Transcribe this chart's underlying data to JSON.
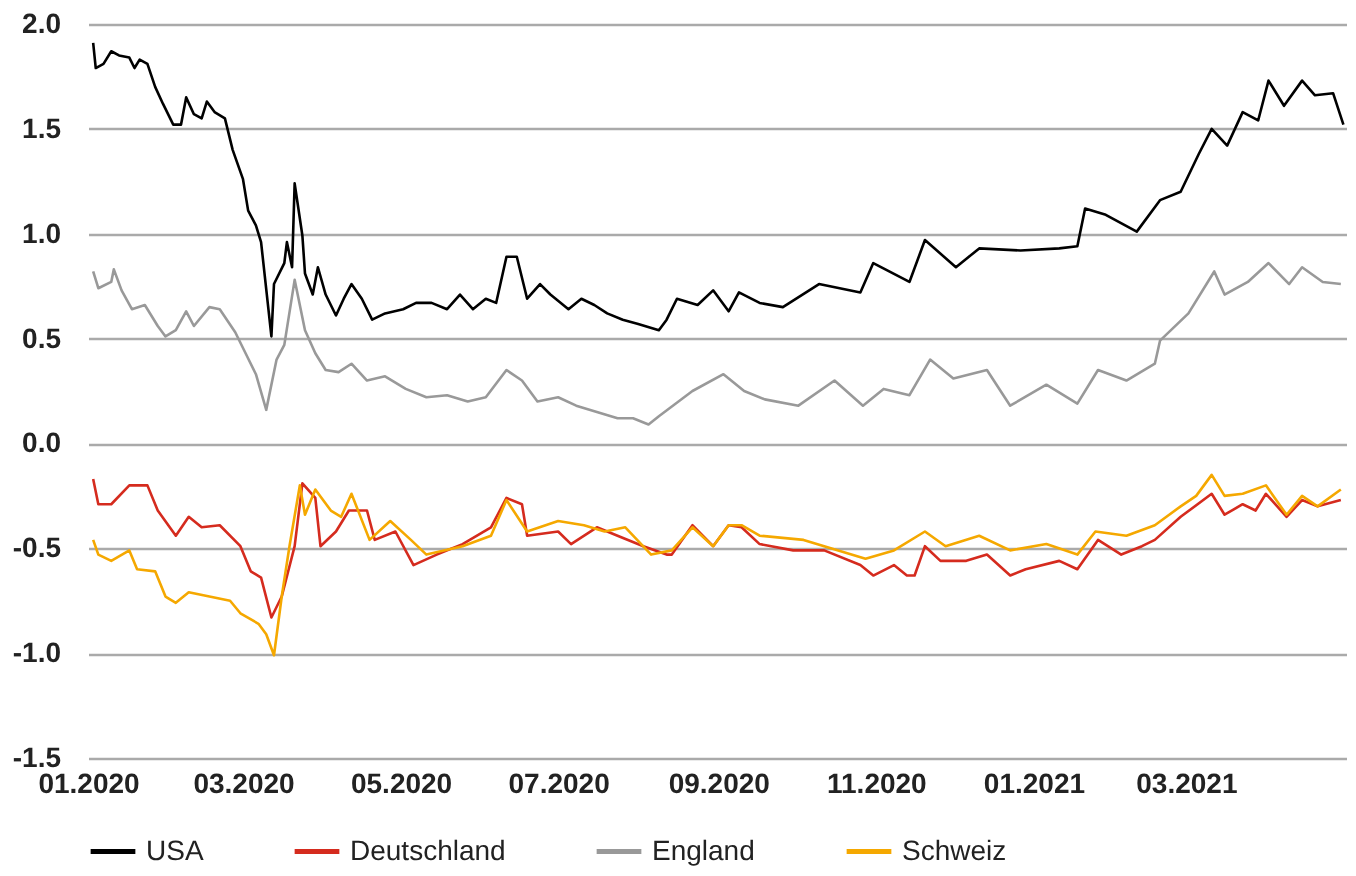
{
  "chart_data": {
    "type": "line",
    "xlim": [
      "2020-01-01",
      "2021-05-02"
    ],
    "xticks": [
      {
        "value": "2020-01-01",
        "label": "01.2020"
      },
      {
        "value": "2020-03-01",
        "label": "03.2020"
      },
      {
        "value": "2020-05-01",
        "label": "05.2020"
      },
      {
        "value": "2020-07-01",
        "label": "07.2020"
      },
      {
        "value": "2020-09-01",
        "label": "09.2020"
      },
      {
        "value": "2020-11-01",
        "label": "11.2020"
      },
      {
        "value": "2021-01-01",
        "label": "01.2021"
      },
      {
        "value": "2021-03-01",
        "label": "03.2021"
      }
    ],
    "ylim": [
      -1.5,
      2.0
    ],
    "yticks": [
      {
        "value": -1.5,
        "label": "-1.5"
      },
      {
        "value": -1,
        "label": "-1.0"
      },
      {
        "value": -0.5,
        "label": "-0.5"
      },
      {
        "value": 0,
        "label": "0.0"
      },
      {
        "value": 0.5,
        "label": "0.5"
      },
      {
        "value": 1,
        "label": "1.0"
      },
      {
        "value": 1.5,
        "label": "1.5"
      },
      {
        "value": 2,
        "label": "2.0"
      }
    ],
    "grid": "y",
    "legend": "bottom",
    "series": [
      {
        "name": "USA",
        "color": "#000000",
        "x": [
          "2020-01-03",
          "2020-01-04",
          "2020-01-07",
          "2020-01-10",
          "2020-01-13",
          "2020-01-17",
          "2020-01-19",
          "2020-01-21",
          "2020-01-24",
          "2020-01-27",
          "2020-01-30",
          "2020-02-03",
          "2020-02-06",
          "2020-02-08",
          "2020-02-11",
          "2020-02-14",
          "2020-02-16",
          "2020-02-19",
          "2020-02-23",
          "2020-02-26",
          "2020-03-01",
          "2020-03-03",
          "2020-03-06",
          "2020-03-08",
          "2020-03-12",
          "2020-03-13",
          "2020-03-17",
          "2020-03-18",
          "2020-03-20",
          "2020-03-21",
          "2020-03-24",
          "2020-03-25",
          "2020-03-28",
          "2020-03-30",
          "2020-04-02",
          "2020-04-06",
          "2020-04-09",
          "2020-04-12",
          "2020-04-16",
          "2020-04-20",
          "2020-04-25",
          "2020-05-02",
          "2020-05-07",
          "2020-05-13",
          "2020-05-19",
          "2020-05-24",
          "2020-05-29",
          "2020-06-03",
          "2020-06-07",
          "2020-06-11",
          "2020-06-15",
          "2020-06-19",
          "2020-06-24",
          "2020-06-28",
          "2020-07-05",
          "2020-07-10",
          "2020-07-15",
          "2020-07-20",
          "2020-07-26",
          "2020-08-01",
          "2020-08-09",
          "2020-08-12",
          "2020-08-16",
          "2020-08-24",
          "2020-08-30",
          "2020-09-05",
          "2020-09-09",
          "2020-09-17",
          "2020-09-26",
          "2020-10-10",
          "2020-10-26",
          "2020-10-31",
          "2020-11-14",
          "2020-11-20",
          "2020-12-02",
          "2020-12-11",
          "2020-12-27",
          "2021-01-11",
          "2021-01-18",
          "2021-01-21",
          "2021-01-29",
          "2021-02-10",
          "2021-02-19",
          "2021-02-27",
          "2021-03-06",
          "2021-03-11",
          "2021-03-17",
          "2021-03-23",
          "2021-03-29",
          "2021-04-02",
          "2021-04-08",
          "2021-04-15",
          "2021-04-20",
          "2021-04-27",
          "2021-05-01"
        ],
        "values": [
          1.91,
          1.79,
          1.81,
          1.87,
          1.85,
          1.84,
          1.79,
          1.83,
          1.81,
          1.7,
          1.62,
          1.52,
          1.52,
          1.65,
          1.57,
          1.55,
          1.63,
          1.58,
          1.55,
          1.4,
          1.26,
          1.11,
          1.04,
          0.96,
          0.51,
          0.76,
          0.86,
          0.96,
          0.84,
          1.24,
          0.99,
          0.81,
          0.71,
          0.84,
          0.71,
          0.61,
          0.69,
          0.76,
          0.69,
          0.59,
          0.62,
          0.64,
          0.67,
          0.67,
          0.64,
          0.71,
          0.64,
          0.69,
          0.67,
          0.89,
          0.89,
          0.69,
          0.76,
          0.71,
          0.64,
          0.69,
          0.66,
          0.62,
          0.59,
          0.57,
          0.54,
          0.59,
          0.69,
          0.66,
          0.73,
          0.63,
          0.72,
          0.67,
          0.65,
          0.76,
          0.72,
          0.86,
          0.77,
          0.97,
          0.84,
          0.93,
          0.92,
          0.93,
          0.94,
          1.12,
          1.09,
          1.01,
          1.16,
          1.2,
          1.38,
          1.5,
          1.42,
          1.58,
          1.54,
          1.73,
          1.61,
          1.73,
          1.66,
          1.67,
          1.52
        ]
      },
      {
        "name": "Deutschland",
        "color": "#d52b1e",
        "x": [
          "2020-01-03",
          "2020-01-05",
          "2020-01-10",
          "2020-01-17",
          "2020-01-24",
          "2020-01-28",
          "2020-02-04",
          "2020-02-09",
          "2020-02-14",
          "2020-02-21",
          "2020-02-29",
          "2020-03-04",
          "2020-03-08",
          "2020-03-12",
          "2020-03-16",
          "2020-03-21",
          "2020-03-24",
          "2020-03-29",
          "2020-03-31",
          "2020-04-06",
          "2020-04-11",
          "2020-04-18",
          "2020-04-21",
          "2020-04-29",
          "2020-05-06",
          "2020-05-15",
          "2020-05-25",
          "2020-06-05",
          "2020-06-11",
          "2020-06-17",
          "2020-06-19",
          "2020-07-01",
          "2020-07-06",
          "2020-07-16",
          "2020-07-24",
          "2020-08-03",
          "2020-08-12",
          "2020-08-14",
          "2020-08-22",
          "2020-08-30",
          "2020-09-05",
          "2020-09-10",
          "2020-09-17",
          "2020-09-30",
          "2020-10-12",
          "2020-10-26",
          "2020-10-31",
          "2020-11-08",
          "2020-11-13",
          "2020-11-16",
          "2020-11-20",
          "2020-11-26",
          "2020-12-06",
          "2020-12-14",
          "2020-12-23",
          "2020-12-29",
          "2021-01-11",
          "2021-01-18",
          "2021-01-26",
          "2021-02-04",
          "2021-02-12",
          "2021-02-17",
          "2021-02-27",
          "2021-03-11",
          "2021-03-16",
          "2021-03-23",
          "2021-03-28",
          "2021-04-01",
          "2021-04-09",
          "2021-04-15",
          "2021-04-21",
          "2021-04-30"
        ],
        "values": [
          -0.17,
          -0.29,
          -0.29,
          -0.2,
          -0.2,
          -0.32,
          -0.44,
          -0.35,
          -0.4,
          -0.39,
          -0.49,
          -0.61,
          -0.64,
          -0.83,
          -0.73,
          -0.49,
          -0.19,
          -0.26,
          -0.49,
          -0.42,
          -0.32,
          -0.32,
          -0.46,
          -0.42,
          -0.58,
          -0.53,
          -0.48,
          -0.4,
          -0.26,
          -0.29,
          -0.44,
          -0.42,
          -0.48,
          -0.4,
          -0.44,
          -0.49,
          -0.53,
          -0.53,
          -0.39,
          -0.49,
          -0.39,
          -0.4,
          -0.48,
          -0.51,
          -0.51,
          -0.58,
          -0.63,
          -0.58,
          -0.63,
          -0.63,
          -0.49,
          -0.56,
          -0.56,
          -0.53,
          -0.63,
          -0.6,
          -0.56,
          -0.6,
          -0.46,
          -0.53,
          -0.49,
          -0.46,
          -0.35,
          -0.24,
          -0.34,
          -0.29,
          -0.32,
          -0.24,
          -0.35,
          -0.27,
          -0.3,
          -0.27
        ]
      },
      {
        "name": "England",
        "color": "#999999",
        "x": [
          "2020-01-03",
          "2020-01-05",
          "2020-01-10",
          "2020-01-11",
          "2020-01-14",
          "2020-01-18",
          "2020-01-23",
          "2020-01-28",
          "2020-01-31",
          "2020-02-04",
          "2020-02-08",
          "2020-02-11",
          "2020-02-17",
          "2020-02-21",
          "2020-02-27",
          "2020-03-02",
          "2020-03-06",
          "2020-03-10",
          "2020-03-14",
          "2020-03-17",
          "2020-03-21",
          "2020-03-25",
          "2020-03-29",
          "2020-04-02",
          "2020-04-07",
          "2020-04-12",
          "2020-04-18",
          "2020-04-25",
          "2020-05-03",
          "2020-05-11",
          "2020-05-19",
          "2020-05-27",
          "2020-06-03",
          "2020-06-11",
          "2020-06-17",
          "2020-06-23",
          "2020-07-01",
          "2020-07-08",
          "2020-07-16",
          "2020-07-24",
          "2020-07-30",
          "2020-08-05",
          "2020-08-09",
          "2020-08-22",
          "2020-09-03",
          "2020-09-11",
          "2020-09-19",
          "2020-10-02",
          "2020-10-16",
          "2020-10-27",
          "2020-11-04",
          "2020-11-14",
          "2020-11-22",
          "2020-12-01",
          "2020-12-14",
          "2020-12-23",
          "2021-01-06",
          "2021-01-18",
          "2021-01-26",
          "2021-02-06",
          "2021-02-17",
          "2021-02-19",
          "2021-03-02",
          "2021-03-12",
          "2021-03-16",
          "2021-03-25",
          "2021-04-02",
          "2021-04-10",
          "2021-04-15",
          "2021-04-23",
          "2021-04-30"
        ],
        "values": [
          0.82,
          0.74,
          0.77,
          0.83,
          0.73,
          0.64,
          0.66,
          0.56,
          0.51,
          0.54,
          0.63,
          0.56,
          0.65,
          0.64,
          0.53,
          0.43,
          0.33,
          0.16,
          0.4,
          0.47,
          0.78,
          0.54,
          0.43,
          0.35,
          0.34,
          0.38,
          0.3,
          0.32,
          0.26,
          0.22,
          0.23,
          0.2,
          0.22,
          0.35,
          0.3,
          0.2,
          0.22,
          0.18,
          0.15,
          0.12,
          0.12,
          0.09,
          0.13,
          0.25,
          0.33,
          0.25,
          0.21,
          0.18,
          0.3,
          0.18,
          0.26,
          0.23,
          0.4,
          0.31,
          0.35,
          0.18,
          0.28,
          0.19,
          0.35,
          0.3,
          0.38,
          0.49,
          0.62,
          0.82,
          0.71,
          0.77,
          0.86,
          0.76,
          0.84,
          0.77,
          0.76
        ]
      },
      {
        "name": "Schweiz",
        "color": "#f5a800",
        "x": [
          "2020-01-03",
          "2020-01-05",
          "2020-01-10",
          "2020-01-17",
          "2020-01-20",
          "2020-01-27",
          "2020-01-31",
          "2020-02-04",
          "2020-02-09",
          "2020-02-17",
          "2020-02-25",
          "2020-02-29",
          "2020-03-07",
          "2020-03-10",
          "2020-03-13",
          "2020-03-16",
          "2020-03-19",
          "2020-03-23",
          "2020-03-25",
          "2020-03-29",
          "2020-04-04",
          "2020-04-08",
          "2020-04-12",
          "2020-04-19",
          "2020-04-27",
          "2020-05-05",
          "2020-05-11",
          "2020-05-25",
          "2020-06-05",
          "2020-06-11",
          "2020-06-19",
          "2020-07-01",
          "2020-07-11",
          "2020-07-19",
          "2020-07-27",
          "2020-08-06",
          "2020-08-14",
          "2020-08-22",
          "2020-08-30",
          "2020-09-05",
          "2020-09-10",
          "2020-09-17",
          "2020-10-04",
          "2020-10-12",
          "2020-10-28",
          "2020-11-08",
          "2020-11-20",
          "2020-11-28",
          "2020-12-11",
          "2020-12-23",
          "2021-01-06",
          "2021-01-18",
          "2021-01-25",
          "2021-02-06",
          "2021-02-17",
          "2021-02-27",
          "2021-03-05",
          "2021-03-11",
          "2021-03-16",
          "2021-03-23",
          "2021-04-01",
          "2021-04-09",
          "2021-04-15",
          "2021-04-21",
          "2021-04-30"
        ],
        "values": [
          -0.46,
          -0.53,
          -0.56,
          -0.51,
          -0.6,
          -0.61,
          -0.73,
          -0.76,
          -0.71,
          -0.73,
          -0.75,
          -0.81,
          -0.86,
          -0.91,
          -1.01,
          -0.73,
          -0.49,
          -0.2,
          -0.34,
          -0.22,
          -0.32,
          -0.35,
          -0.24,
          -0.46,
          -0.37,
          -0.46,
          -0.53,
          -0.49,
          -0.44,
          -0.27,
          -0.42,
          -0.37,
          -0.39,
          -0.42,
          -0.4,
          -0.53,
          -0.51,
          -0.4,
          -0.49,
          -0.39,
          -0.39,
          -0.44,
          -0.46,
          -0.49,
          -0.55,
          -0.51,
          -0.42,
          -0.49,
          -0.44,
          -0.51,
          -0.48,
          -0.53,
          -0.42,
          -0.44,
          -0.39,
          -0.3,
          -0.25,
          -0.15,
          -0.25,
          -0.24,
          -0.2,
          -0.34,
          -0.25,
          -0.3,
          -0.22
        ]
      }
    ]
  }
}
